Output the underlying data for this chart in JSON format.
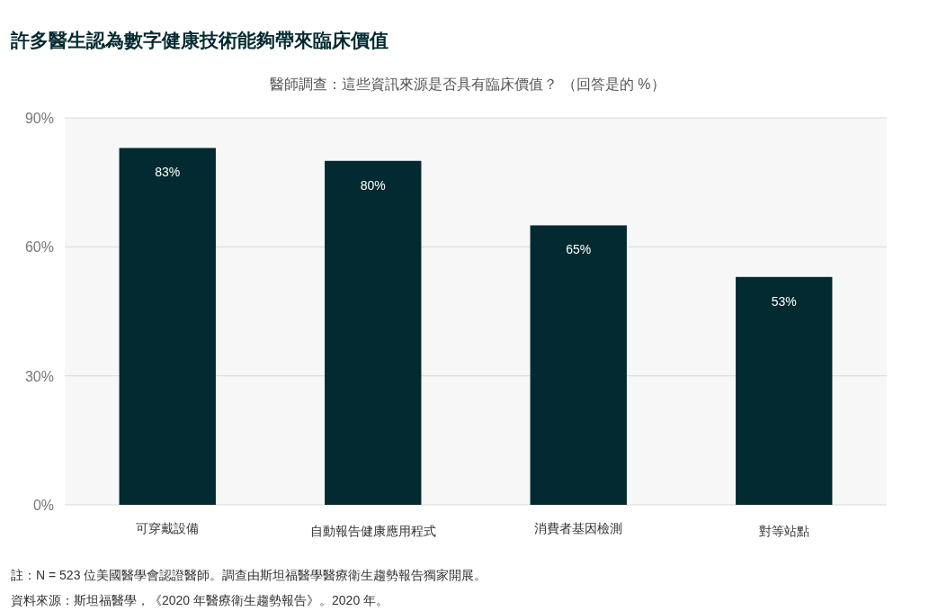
{
  "chart_data": {
    "type": "bar",
    "title": "許多醫生認為數字健康技術能夠帶來臨床價值",
    "subtitle": "醫師調查：這些資訊來源是否具有臨床價值？ （回答是的 %）",
    "categories": [
      "可穿戴設備",
      "自動報告健康應用程式",
      "消費者基因檢測",
      "對等站點"
    ],
    "values": [
      83,
      80,
      65,
      53
    ],
    "color": "#022a30",
    "value_labels": [
      "83%",
      "80%",
      "65%",
      "53%"
    ],
    "ylim": [
      0,
      90
    ],
    "yticks": [
      {
        "value": 0,
        "label": "0%"
      },
      {
        "value": 30,
        "label": "30%"
      },
      {
        "value": 60,
        "label": "60%"
      },
      {
        "value": 90,
        "label": "90%"
      }
    ],
    "grid": "y",
    "annotations": [
      "註：N = 523 位美國醫學會認證醫師。調查由斯坦福醫學醫療衛生趨勢報告獨家開展。",
      "資料來源：斯坦福醫學，《2020 年醫療衛生趨勢報告》。2020 年。"
    ]
  }
}
